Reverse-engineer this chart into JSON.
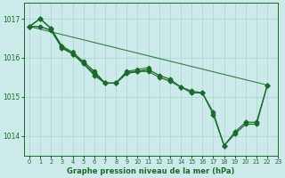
{
  "title": "Graphe pression niveau de la mer (hPa)",
  "background_color": "#cceaea",
  "grid_color": "#aad4cc",
  "line_color": "#1a6b2a",
  "xlim": [
    -0.5,
    23
  ],
  "ylim": [
    1013.5,
    1017.4
  ],
  "yticks": [
    1014,
    1015,
    1016,
    1017
  ],
  "xticks": [
    0,
    1,
    2,
    3,
    4,
    5,
    6,
    7,
    8,
    9,
    10,
    11,
    12,
    13,
    14,
    15,
    16,
    17,
    18,
    19,
    20,
    21,
    22,
    23
  ],
  "series": {
    "diagonal": {
      "x": [
        0,
        22
      ],
      "y": [
        1016.8,
        1015.3
      ]
    },
    "line_a": {
      "x": [
        0,
        1,
        2,
        3,
        4,
        5,
        6,
        7,
        8,
        9,
        10,
        11,
        12,
        13,
        14,
        15,
        16,
        17,
        18,
        19,
        20,
        21,
        22
      ],
      "y": [
        1016.8,
        1017.0,
        1016.75,
        1016.3,
        1016.1,
        1015.85,
        1015.6,
        1015.35,
        1015.35,
        1015.6,
        1015.65,
        1015.7,
        1015.55,
        1015.45,
        1015.25,
        1015.1,
        1015.1,
        1014.55,
        1013.75,
        1014.05,
        1014.3,
        1014.3,
        1015.3
      ]
    },
    "line_b": {
      "x": [
        0,
        1,
        2,
        3,
        4,
        5,
        6,
        7,
        8,
        9,
        10,
        11
      ],
      "y": [
        1016.8,
        1016.8,
        1016.7,
        1016.25,
        1016.1,
        1015.9,
        1015.65,
        1015.35,
        1015.35,
        1015.65,
        1015.65,
        1015.7
      ]
    },
    "line_c": {
      "x": [
        0,
        1,
        2,
        3,
        4,
        5,
        6,
        7,
        8,
        9,
        10,
        11
      ],
      "y": [
        1016.8,
        1016.8,
        1016.7,
        1016.3,
        1016.15,
        1015.9,
        1015.65,
        1015.35,
        1015.35,
        1015.65,
        1015.7,
        1015.75
      ]
    },
    "line_d": {
      "x": [
        0,
        1,
        2,
        3,
        4,
        5,
        6,
        7,
        8,
        9,
        10,
        11,
        12,
        13,
        14,
        15,
        16,
        17,
        18,
        19,
        20,
        21,
        22
      ],
      "y": [
        1016.8,
        1017.0,
        1016.75,
        1016.25,
        1016.1,
        1015.85,
        1015.55,
        1015.35,
        1015.35,
        1015.6,
        1015.65,
        1015.65,
        1015.5,
        1015.4,
        1015.25,
        1015.15,
        1015.1,
        1014.6,
        1013.75,
        1014.1,
        1014.35,
        1014.35,
        1015.3
      ]
    }
  }
}
